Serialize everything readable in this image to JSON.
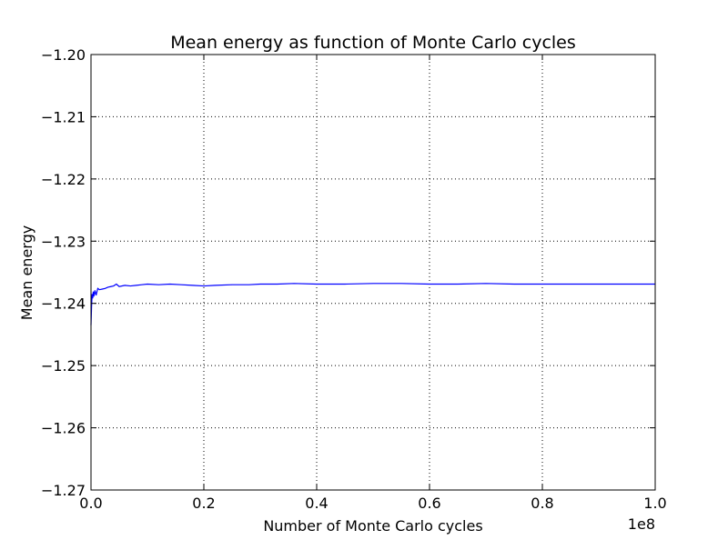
{
  "chart_data": {
    "type": "line",
    "title": "Mean energy as function of Monte Carlo cycles",
    "xlabel": "Number of Monte Carlo cycles",
    "ylabel": "Mean energy",
    "x_offset_label": "1e8",
    "xlim": [
      0,
      100000000
    ],
    "ylim": [
      -1.27,
      -1.2
    ],
    "x_ticks": [
      0,
      20000000,
      40000000,
      60000000,
      80000000,
      100000000
    ],
    "x_tick_labels": [
      "0.0",
      "0.2",
      "0.4",
      "0.6",
      "0.8",
      "1.0"
    ],
    "y_ticks": [
      -1.27,
      -1.26,
      -1.25,
      -1.24,
      -1.23,
      -1.22,
      -1.21,
      -1.2
    ],
    "y_tick_labels": [
      "−1.27",
      "−1.26",
      "−1.25",
      "−1.24",
      "−1.23",
      "−1.22",
      "−1.21",
      "−1.20"
    ],
    "grid": true,
    "series": [
      {
        "color": "#0000ff",
        "x": [
          0,
          100000,
          200000,
          300000,
          400000,
          500000,
          700000,
          900000,
          1200000,
          1500000,
          2000000,
          2500000,
          3000000,
          3500000,
          4000000,
          4500000,
          5000000,
          6000000,
          7000000,
          8000000,
          9000000,
          10000000,
          12000000,
          14000000,
          16000000,
          18000000,
          20000000,
          22000000,
          25000000,
          28000000,
          30000000,
          33000000,
          36000000,
          40000000,
          45000000,
          50000000,
          55000000,
          60000000,
          65000000,
          70000000,
          75000000,
          80000000,
          85000000,
          90000000,
          95000000,
          100000000
        ],
        "y": [
          -1.2435,
          -1.2405,
          -1.2385,
          -1.2392,
          -1.2381,
          -1.2389,
          -1.2379,
          -1.2387,
          -1.2376,
          -1.2378,
          -1.2377,
          -1.2376,
          -1.2374,
          -1.2373,
          -1.2372,
          -1.2369,
          -1.2373,
          -1.2371,
          -1.2372,
          -1.2371,
          -1.237,
          -1.2369,
          -1.237,
          -1.2369,
          -1.237,
          -1.2371,
          -1.2372,
          -1.2371,
          -1.237,
          -1.237,
          -1.2369,
          -1.2369,
          -1.2368,
          -1.2369,
          -1.2369,
          -1.2368,
          -1.2368,
          -1.2369,
          -1.2369,
          -1.2368,
          -1.2369,
          -1.2369,
          -1.2369,
          -1.2369,
          -1.2369,
          -1.2369
        ]
      }
    ]
  }
}
